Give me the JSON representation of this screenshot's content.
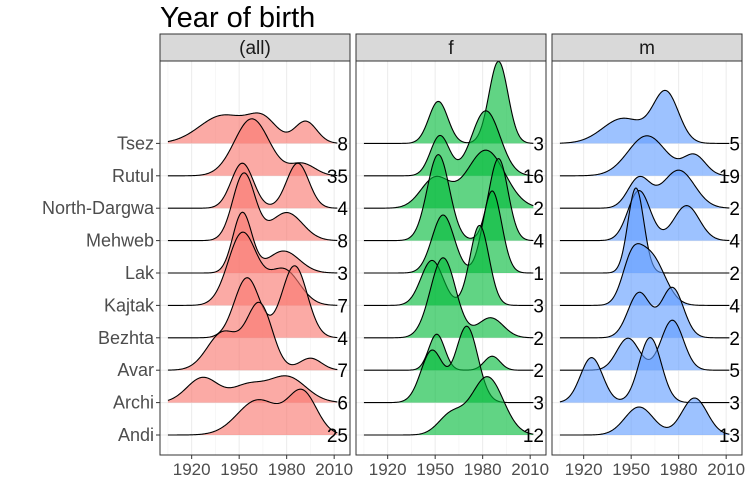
{
  "chart_data": {
    "type": "ridgeline",
    "title": "Year of birth",
    "panels": [
      "(all)",
      "f",
      "m"
    ],
    "categories": [
      "Andi",
      "Archi",
      "Avar",
      "Bezhta",
      "Kajtak",
      "Lak",
      "Mehweb",
      "North-Dargwa",
      "Rutul",
      "Tsez"
    ],
    "x_ticks": [
      1920,
      1950,
      1980,
      2010
    ],
    "xlim": [
      1900,
      2020
    ],
    "colors": {
      "(all)": "#f8766d",
      "f": "#00ba38",
      "m": "#619cff"
    },
    "counts": {
      "(all)": {
        "Andi": 25,
        "Archi": 6,
        "Avar": 7,
        "Bezhta": 4,
        "Kajtak": 7,
        "Lak": 3,
        "Mehweb": 8,
        "North-Dargwa": 4,
        "Rutul": 35,
        "Tsez": 8
      },
      "f": {
        "Andi": 12,
        "Archi": 3,
        "Avar": 2,
        "Bezhta": 2,
        "Kajtak": 3,
        "Lak": 1,
        "Mehweb": 4,
        "North-Dargwa": 2,
        "Rutul": 16,
        "Tsez": 3
      },
      "m": {
        "Andi": 13,
        "Archi": 3,
        "Avar": 5,
        "Bezhta": 2,
        "Kajtak": 4,
        "Lak": 2,
        "Mehweb": 4,
        "North-Dargwa": 2,
        "Rutul": 19,
        "Tsez": 5
      }
    },
    "grid": true,
    "legend": "none"
  }
}
